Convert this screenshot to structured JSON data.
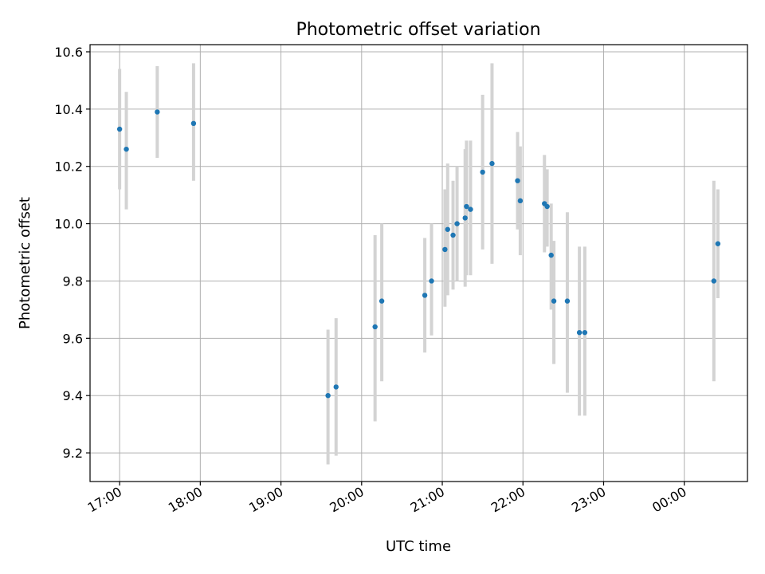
{
  "chart_data": {
    "type": "scatter",
    "title": "Photometric offset variation",
    "xlabel": "UTC time",
    "ylabel": "Photometric offset",
    "x_is_time": true,
    "xlim": [
      "16:38",
      "00:47"
    ],
    "ylim": [
      9.1,
      10.625
    ],
    "x_ticks": [
      "17:00",
      "18:00",
      "19:00",
      "20:00",
      "21:00",
      "22:00",
      "23:00",
      "00:00"
    ],
    "y_ticks": [
      9.2,
      9.4,
      9.6,
      9.8,
      10.0,
      10.2,
      10.4,
      10.6
    ],
    "y_tick_labels": [
      "9.2",
      "9.4",
      "9.6",
      "9.8",
      "10.0",
      "10.2",
      "10.4",
      "10.6"
    ],
    "grid": true,
    "colors": {
      "point": "#1f77b4",
      "errorbar": "#d3d3d3",
      "grid": "#b0b0b0"
    },
    "points": [
      {
        "x": "17:00",
        "y": 10.33,
        "ylow": 10.12,
        "yhigh": 10.54
      },
      {
        "x": "17:05",
        "y": 10.26,
        "ylow": 10.05,
        "yhigh": 10.46
      },
      {
        "x": "17:28",
        "y": 10.39,
        "ylow": 10.23,
        "yhigh": 10.55
      },
      {
        "x": "17:55",
        "y": 10.35,
        "ylow": 10.15,
        "yhigh": 10.56
      },
      {
        "x": "19:35",
        "y": 9.4,
        "ylow": 9.16,
        "yhigh": 9.63
      },
      {
        "x": "19:41",
        "y": 9.43,
        "ylow": 9.19,
        "yhigh": 9.67
      },
      {
        "x": "20:10",
        "y": 9.64,
        "ylow": 9.31,
        "yhigh": 9.96
      },
      {
        "x": "20:15",
        "y": 9.73,
        "ylow": 9.45,
        "yhigh": 10.0
      },
      {
        "x": "20:47",
        "y": 9.75,
        "ylow": 9.55,
        "yhigh": 9.95
      },
      {
        "x": "20:52",
        "y": 9.8,
        "ylow": 9.61,
        "yhigh": 10.0
      },
      {
        "x": "21:02",
        "y": 9.91,
        "ylow": 9.71,
        "yhigh": 10.12
      },
      {
        "x": "21:04",
        "y": 9.98,
        "ylow": 9.75,
        "yhigh": 10.21
      },
      {
        "x": "21:08",
        "y": 9.96,
        "ylow": 9.77,
        "yhigh": 10.15
      },
      {
        "x": "21:11",
        "y": 10.0,
        "ylow": 9.8,
        "yhigh": 10.2
      },
      {
        "x": "21:17",
        "y": 10.02,
        "ylow": 9.78,
        "yhigh": 10.26
      },
      {
        "x": "21:18",
        "y": 10.06,
        "ylow": 9.82,
        "yhigh": 10.29
      },
      {
        "x": "21:21",
        "y": 10.05,
        "ylow": 9.82,
        "yhigh": 10.29
      },
      {
        "x": "21:30",
        "y": 10.18,
        "ylow": 9.91,
        "yhigh": 10.45
      },
      {
        "x": "21:37",
        "y": 10.21,
        "ylow": 9.86,
        "yhigh": 10.56
      },
      {
        "x": "21:56",
        "y": 10.15,
        "ylow": 9.98,
        "yhigh": 10.32
      },
      {
        "x": "21:58",
        "y": 10.08,
        "ylow": 9.89,
        "yhigh": 10.27
      },
      {
        "x": "22:16",
        "y": 10.07,
        "ylow": 9.9,
        "yhigh": 10.24
      },
      {
        "x": "22:18",
        "y": 10.06,
        "ylow": 9.92,
        "yhigh": 10.19
      },
      {
        "x": "22:21",
        "y": 9.89,
        "ylow": 9.7,
        "yhigh": 10.07
      },
      {
        "x": "22:23",
        "y": 9.73,
        "ylow": 9.51,
        "yhigh": 9.94
      },
      {
        "x": "22:33",
        "y": 9.73,
        "ylow": 9.41,
        "yhigh": 10.04
      },
      {
        "x": "22:42",
        "y": 9.62,
        "ylow": 9.33,
        "yhigh": 9.92
      },
      {
        "x": "22:46",
        "y": 9.62,
        "ylow": 9.33,
        "yhigh": 9.92
      },
      {
        "x": "00:22",
        "y": 9.8,
        "ylow": 9.45,
        "yhigh": 10.15
      },
      {
        "x": "00:25",
        "y": 9.93,
        "ylow": 9.74,
        "yhigh": 10.12
      }
    ]
  }
}
